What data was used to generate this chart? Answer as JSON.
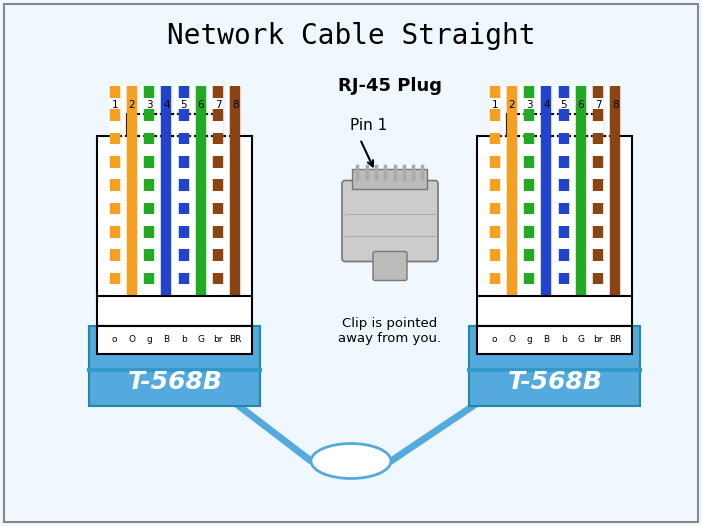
{
  "title": "Network Cable Straight",
  "title_fontsize": 20,
  "background_color": "#f0f8ff",
  "border_color": "#888888",
  "rj45_label": "RJ-45 Plug",
  "pin1_label": "Pin 1",
  "clip_label": "Clip is pointed\naway from you.",
  "standard_label": "T-568B",
  "connector_label_row": [
    "o",
    "O",
    "g",
    "B",
    "b",
    "G",
    "br",
    "BR"
  ],
  "pin_numbers": [
    "1",
    "2",
    "3",
    "4",
    "5",
    "6",
    "7",
    "8"
  ],
  "wire_colors": [
    [
      "#ffffff",
      "#f5a020"
    ],
    [
      "#f5a020",
      "#f5a020"
    ],
    [
      "#ffffff",
      "#22aa22"
    ],
    [
      "#2244cc",
      "#2244cc"
    ],
    [
      "#ffffff",
      "#2244cc"
    ],
    [
      "#22aa22",
      "#22aa22"
    ],
    [
      "#ffffff",
      "#8b4513"
    ],
    [
      "#8b4513",
      "#8b4513"
    ]
  ],
  "connector_blue": "#55aadd",
  "connector_blue_dark": "#3399cc"
}
